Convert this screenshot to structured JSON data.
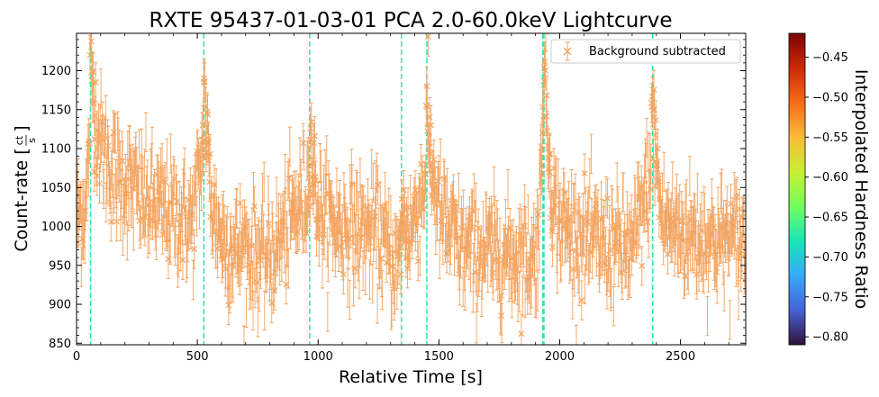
{
  "chart_data": {
    "type": "scatter",
    "title": "RXTE 95437-01-03-01 PCA 2.0-60.0keV Lightcurve",
    "xlabel": "Relative Time [s]",
    "ylabel": "Count-rate [ct/s]",
    "ylabel_main": "Count-rate [",
    "ylabel_unit_num": "ct",
    "ylabel_unit_den": "s",
    "ylabel_close": "]",
    "xlim": [
      0,
      2770
    ],
    "ylim": [
      848,
      1248
    ],
    "xticks": [
      0,
      500,
      1000,
      1500,
      2000,
      2500
    ],
    "xtick_labels": [
      "0",
      "500",
      "1000",
      "1500",
      "2000",
      "2500"
    ],
    "yticks": [
      850,
      900,
      950,
      1000,
      1050,
      1100,
      1150,
      1200
    ],
    "ytick_labels": [
      "850",
      "900",
      "950",
      "1000",
      "1050",
      "1100",
      "1150",
      "1200"
    ],
    "legend": {
      "label": "Background subtracted",
      "location": "upper right"
    },
    "series_color": "#f4a460",
    "burst_line_color": "#2ee6a8",
    "burst_times": [
      58,
      527,
      965,
      1345,
      1450,
      1930,
      1935,
      2385
    ],
    "baseline_envelope": [
      [
        0,
        1010
      ],
      [
        40,
        1030
      ],
      [
        58,
        1140
      ],
      [
        90,
        1100
      ],
      [
        150,
        1070
      ],
      [
        300,
        1030
      ],
      [
        480,
        1005
      ],
      [
        527,
        1100
      ],
      [
        560,
        1010
      ],
      [
        620,
        975
      ],
      [
        800,
        960
      ],
      [
        965,
        1050
      ],
      [
        1000,
        1010
      ],
      [
        1100,
        1000
      ],
      [
        1250,
        990
      ],
      [
        1345,
        940
      ],
      [
        1380,
        980
      ],
      [
        1450,
        1070
      ],
      [
        1500,
        1010
      ],
      [
        1600,
        970
      ],
      [
        1750,
        965
      ],
      [
        1900,
        960
      ],
      [
        1930,
        1080
      ],
      [
        1980,
        1000
      ],
      [
        2100,
        985
      ],
      [
        2300,
        970
      ],
      [
        2385,
        1080
      ],
      [
        2420,
        1000
      ],
      [
        2600,
        985
      ],
      [
        2770,
        980
      ]
    ],
    "noise_sigma": 35,
    "errorbar_half_height": 25,
    "n_points": 1400,
    "colorbar": {
      "label": "Interpolated Hardness Ratio",
      "range": [
        -0.81,
        -0.42
      ],
      "ticks": [
        -0.45,
        -0.5,
        -0.55,
        -0.6,
        -0.65,
        -0.7,
        -0.75,
        -0.8
      ],
      "tick_labels": [
        "−0.45",
        "−0.50",
        "−0.55",
        "−0.60",
        "−0.65",
        "−0.70",
        "−0.75",
        "−0.80"
      ],
      "gradient": [
        "#30123b",
        "#4662d7",
        "#36aaf9",
        "#1ae4b6",
        "#72fe5e",
        "#c8ef34",
        "#faba39",
        "#f66b19",
        "#cb2a04",
        "#7a0403"
      ]
    }
  }
}
